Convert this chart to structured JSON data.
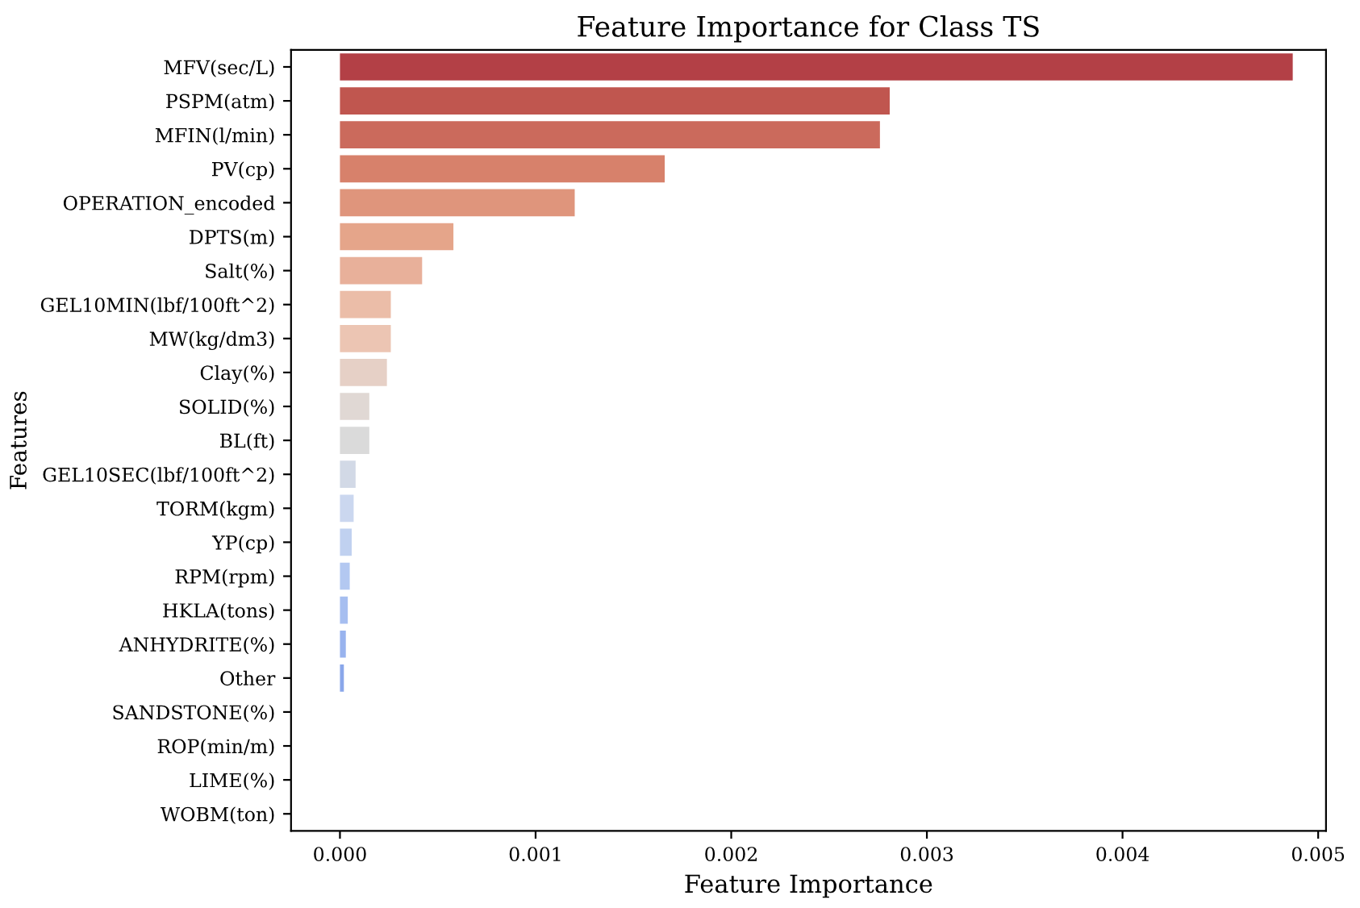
{
  "chart_data": {
    "type": "bar",
    "orientation": "horizontal",
    "title": "Feature Importance for Class TS",
    "xlabel": "Feature Importance",
    "ylabel": "Features",
    "categories": [
      "MFV(sec/L)",
      "PSPM(atm)",
      "MFIN(l/min)",
      "PV(cp)",
      "OPERATION_encoded",
      "DPTS(m)",
      "Salt(%)",
      "GEL10MIN(lbf/100ft^2)",
      "MW(kg/dm3)",
      "Clay(%)",
      "SOLID(%)",
      "BL(ft)",
      "GEL10SEC(lbf/100ft^2)",
      "TORM(kgm)",
      "YP(cp)",
      "RPM(rpm)",
      "HKLA(tons)",
      "ANHYDRITE(%)",
      "Other",
      "SANDSTONE(%)",
      "ROP(min/m)",
      "LIME(%)",
      "WOBM(ton)"
    ],
    "values": [
      0.00487,
      0.00281,
      0.00276,
      0.00166,
      0.0012,
      0.00058,
      0.00042,
      0.00026,
      0.00026,
      0.00024,
      0.00015,
      0.00015,
      8e-05,
      7e-05,
      6e-05,
      5e-05,
      4e-05,
      3e-05,
      2e-05,
      0,
      0,
      0,
      0
    ],
    "colors": [
      "#b34046",
      "#c0564f",
      "#cb6a5c",
      "#d7816b",
      "#df957c",
      "#e5a58a",
      "#e8b09a",
      "#ebbda8",
      "#ecc5b3",
      "#e6d0c6",
      "#e0d8d4",
      "#dadada",
      "#d2d9e6",
      "#cbd7ef",
      "#c0d1f0",
      "#b3c8f1",
      "#a6bef0",
      "#98b3ee",
      "#8aa7ea",
      "#7d9be4",
      "#7090dd",
      "#6484d4",
      "#5977cb"
    ],
    "xlim": [
      -0.00025,
      0.00504
    ],
    "xticks": [
      {
        "value": 0,
        "label": "0.000"
      },
      {
        "value": 0.001,
        "label": "0.001"
      },
      {
        "value": 0.002,
        "label": "0.002"
      },
      {
        "value": 0.003,
        "label": "0.003"
      },
      {
        "value": 0.004,
        "label": "0.004"
      },
      {
        "value": 0.005,
        "label": "0.005"
      }
    ],
    "grid": false
  }
}
